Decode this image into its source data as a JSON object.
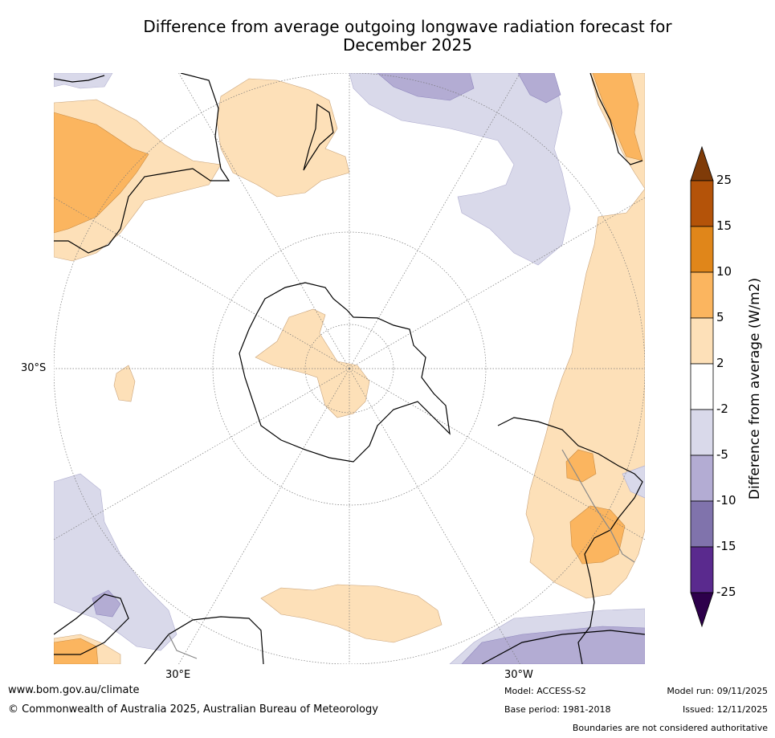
{
  "title_line1": "Difference from average outgoing longwave radiation forecast for",
  "title_line2": "December 2025",
  "map_labels": {
    "lat_30s": "30°S",
    "lon_30e": "30°E",
    "lon_30w": "30°W"
  },
  "colorbar": {
    "title": "Difference from average (W/m2)",
    "ticks": [
      "25",
      "15",
      "10",
      "5",
      "2",
      "-2",
      "-5",
      "-10",
      "-15",
      "-25"
    ],
    "colors": [
      "#b45309",
      "#e0861a",
      "#fbb55f",
      "#fde0b8",
      "#ffffff",
      "#d9d9ea",
      "#b3acd3",
      "#8073ac",
      "#5a2a8e"
    ],
    "top_extend_color": "#7f3b08",
    "bottom_extend_color": "#2d004b"
  },
  "footer": {
    "url": "www.bom.gov.au/climate",
    "copyright": "© Commonwealth of Australia 2025, Australian Bureau of Meteorology",
    "model": "Model: ACCESS-S2",
    "base_period": "Base period: 1981-2018",
    "model_run": "Model run: 09/11/2025",
    "issued": "Issued: 12/11/2025",
    "disclaimer": "Boundaries are not considered authoritative"
  }
}
